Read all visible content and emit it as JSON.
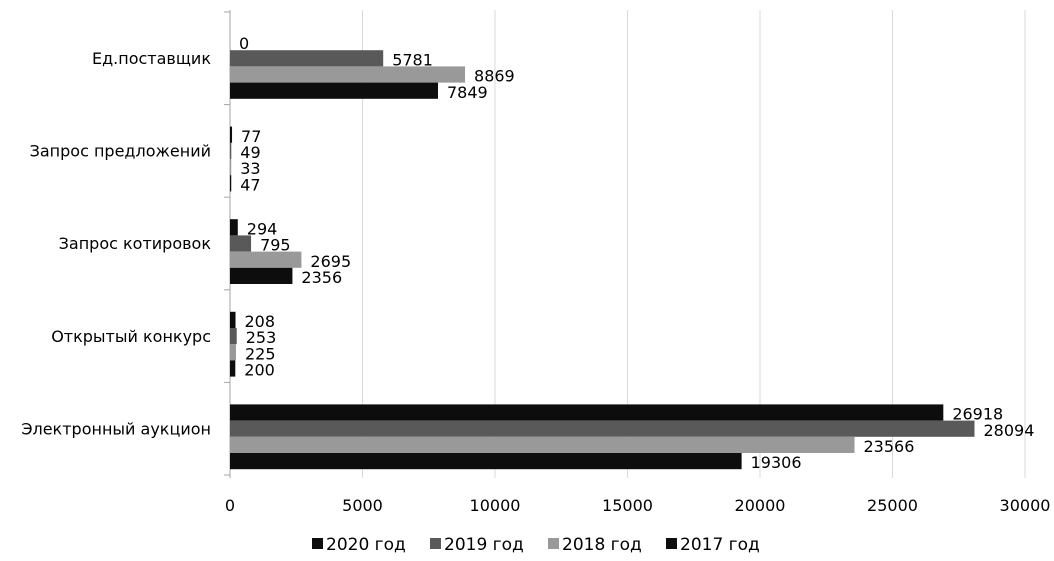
{
  "chart_data": {
    "type": "bar",
    "orientation": "horizontal",
    "title": "",
    "xlabel": "",
    "ylabel": "",
    "xlim": [
      0,
      30000
    ],
    "ticks": [
      "0",
      "5000",
      "10000",
      "15000",
      "20000",
      "25000",
      "30000"
    ],
    "grid": true,
    "legend_position": "bottom",
    "categories": [
      "Ед.поставщик",
      "Запрос предложений",
      "Запрос котировок",
      "Открытый конкурс",
      "Электронный аукцион"
    ],
    "series": [
      {
        "name": "2020 год",
        "color": "#0d0d0d",
        "values": [
          0,
          77,
          294,
          208,
          26918
        ]
      },
      {
        "name": "2019 год",
        "color": "#595959",
        "values": [
          5781,
          49,
          795,
          253,
          28094
        ]
      },
      {
        "name": "2018 год",
        "color": "#999999",
        "values": [
          8869,
          33,
          2695,
          225,
          23566
        ]
      },
      {
        "name": "2017 год",
        "color": "#0d0d0d",
        "values": [
          7849,
          47,
          2356,
          200,
          19306
        ]
      }
    ]
  }
}
